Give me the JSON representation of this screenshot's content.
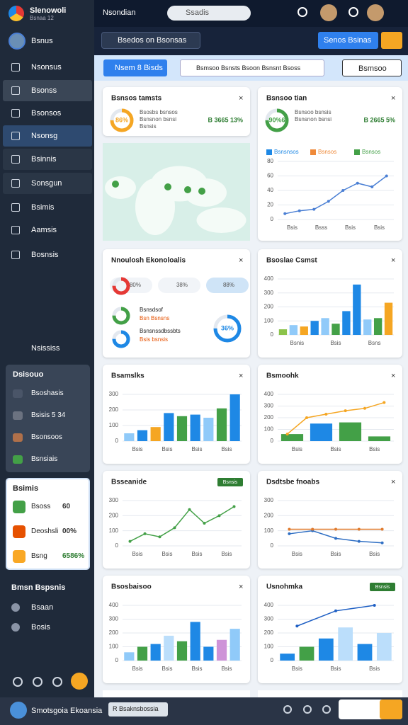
{
  "sidebar": {
    "brand": "Slenowoli",
    "brand_sub": "Bsnaa 12",
    "user": "Bsnus",
    "nav": [
      "Nsonsus",
      "Bsonss",
      "Bsonsos",
      "Nsonsg",
      "Bsinnis",
      "Sonsgun",
      "Bsimis",
      "Aamsis",
      "Bosnsis"
    ],
    "section": "Nsississ",
    "panel1": {
      "title": "Dsisouo",
      "items": [
        "Bsoshasis",
        "Bsisis 5 34",
        "Bsonsoos",
        "Bsnsiais"
      ]
    },
    "panel2": {
      "title": "Bsimis",
      "items": [
        {
          "label": "Bsoss",
          "value": "60",
          "color": "#43a047"
        },
        {
          "label": "Deoshsli",
          "value": "00%",
          "color": "#e65100"
        },
        {
          "label": "Bsng",
          "value": "6586%",
          "color": "#f9a825"
        }
      ]
    },
    "footer_title": "Bmsn Bspsnis",
    "footer_items": [
      "Bsaan",
      "Bosis"
    ]
  },
  "header": {
    "title": "Nsondian",
    "search": "Ssadis",
    "filter": "Bsedos on Bsonsas",
    "primary_button": "Senos Bsinas",
    "tab": "Nsem 8 Bisds",
    "dropdown": "Bsmsoo Bsnsts Bsoon Bsnsnt Bsoss",
    "select": "Bsmsoo"
  },
  "cards": [
    {
      "kind": "stat",
      "title": "Bsnsos tamsts",
      "ring": "86%",
      "lines": [
        "Bsosbs bsnsos",
        "Bsnsnon bsnsi",
        "Bsnsis"
      ],
      "stat": "B 3665 13%"
    },
    {
      "kind": "chart",
      "title": "Bsnsoo tian",
      "ring": "90%6",
      "lines": [
        "Bsnsoo bsnsis",
        "Bsnsnon bsnsi"
      ],
      "stat": "B 2665 5%",
      "legend": [
        {
          "label": "Bsnsnsos",
          "color": "#1e88e5"
        },
        {
          "label": "Bsnsos",
          "color": "#ef8a3a"
        },
        {
          "label": "Bsnsos",
          "color": "#43a047"
        }
      ],
      "ylim": [
        0,
        80
      ],
      "yticks": [
        0,
        20,
        40,
        60,
        80
      ],
      "lines_data": [
        {
          "values": [
            8,
            12,
            14,
            25,
            40,
            50,
            45,
            60
          ],
          "color": "#4a7fd4"
        }
      ],
      "xlabels": [
        "Bsis",
        "Bsss",
        "Bsis",
        "Bsis"
      ]
    },
    {
      "kind": "map"
    },
    {
      "kind": "donuts",
      "title": "Nnoulosh Ekonoloalis",
      "pills": [
        "80%",
        "38%",
        "88%"
      ],
      "rows": [
        {
          "title": "Bsnsdsof",
          "text": "Bsn Bsnsns"
        },
        {
          "title": "Bsnsnssdbssbts",
          "text": "Bsis bsnsis"
        }
      ],
      "ring": "36%"
    },
    {
      "kind": "chart",
      "title": "Bsoslae Csmst",
      "ylim": [
        0,
        400
      ],
      "yticks": [
        0,
        100,
        200,
        300,
        400
      ],
      "bars": {
        "values": [
          40,
          70,
          60,
          100,
          120,
          80,
          170,
          360,
          110,
          120,
          230
        ],
        "colors": [
          "#8bc34a",
          "#90caf9",
          "#f5a623",
          "#1e88e5",
          "#90caf9",
          "#43a047",
          "#1e88e5",
          "#1e88e5",
          "#90caf9",
          "#43a047",
          "#f5a623"
        ]
      },
      "xlabels": [
        "Bsnis",
        "Bsis",
        "Bsns"
      ]
    },
    {
      "kind": "chart",
      "title": "Bsamslks",
      "ylim": [
        0,
        300
      ],
      "yticks": [
        0,
        100,
        200,
        300
      ],
      "bars": {
        "values": [
          50,
          70,
          90,
          180,
          160,
          170,
          150,
          210,
          300
        ],
        "colors": [
          "#90caf9",
          "#1e88e5",
          "#f5a623",
          "#1e88e5",
          "#43a047",
          "#1e88e5",
          "#90caf9",
          "#43a047",
          "#1e88e5"
        ]
      },
      "xlabels": [
        "Bsis",
        "Bsis",
        "Bsis",
        "Bsis"
      ]
    },
    {
      "kind": "chart",
      "title": "Bsmoohk",
      "ylim": [
        0,
        400
      ],
      "yticks": [
        0,
        100,
        200,
        300,
        400
      ],
      "bars": {
        "values": [
          60,
          150,
          160,
          40
        ],
        "colors": [
          "#43a047",
          "#1e88e5",
          "#43a047",
          "#43a047"
        ]
      },
      "lines_data": [
        {
          "values": [
            60,
            200,
            230,
            260,
            280,
            330
          ],
          "color": "#f5a623"
        }
      ],
      "xlabels": [
        "Bsis",
        "Bsis",
        "Bsis"
      ]
    },
    {
      "kind": "chart",
      "title": "Bsseanide",
      "badge": "Bsnsis",
      "ylim": [
        0,
        300
      ],
      "yticks": [
        0,
        100,
        200,
        300
      ],
      "lines_data": [
        {
          "values": [
            30,
            80,
            60,
            120,
            240,
            150,
            200,
            260
          ],
          "color": "#43a047"
        }
      ],
      "xlabels": [
        "Bsis",
        "Bsis",
        "Bsis",
        "Bsis"
      ]
    },
    {
      "kind": "chart",
      "title": "Dsdtsbe fnoabs",
      "ylim": [
        0,
        300
      ],
      "yticks": [
        0,
        100,
        200,
        300
      ],
      "lines_data": [
        {
          "values": [
            80,
            100,
            50,
            30,
            20
          ],
          "color": "#2f6fc4"
        },
        {
          "values": [
            110,
            110,
            110,
            110,
            110
          ],
          "color": "#e07b2e"
        }
      ],
      "xlabels": [
        "Bsis",
        "Bsis",
        "Bsis"
      ]
    },
    {
      "kind": "chart",
      "title": "Bsosbaisoo",
      "ylim": [
        0,
        400
      ],
      "yticks": [
        0,
        100,
        200,
        300,
        400
      ],
      "bars": {
        "values": [
          60,
          100,
          120,
          180,
          140,
          280,
          100,
          150,
          230
        ],
        "colors": [
          "#90caf9",
          "#43a047",
          "#1e88e5",
          "#bbdefb",
          "#43a047",
          "#1e88e5",
          "#1e88e5",
          "#ce93d8",
          "#90caf9"
        ]
      },
      "xlabels": [
        "Bsis",
        "Bsis",
        "Bsis",
        "Bsis"
      ]
    },
    {
      "kind": "chart",
      "title": "Usnohmka",
      "badge": "Bsnsis",
      "ylim": [
        0,
        400
      ],
      "yticks": [
        0,
        100,
        200,
        300,
        400
      ],
      "bars": {
        "values": [
          50,
          100,
          160,
          240,
          120,
          200
        ],
        "colors": [
          "#1e88e5",
          "#43a047",
          "#1e88e5",
          "#bbdefb",
          "#1e88e5",
          "#bbdefb"
        ]
      },
      "lines_data": [
        {
          "values": [
            250,
            360,
            400
          ],
          "color": "#1e5fc4"
        }
      ],
      "xlabels": [
        "Bsis",
        "Bsis",
        "Bsis"
      ]
    }
  ],
  "bottom": {
    "title": "Smotsgoia Ekoansia",
    "chip": "R Bsaknsbossia"
  }
}
